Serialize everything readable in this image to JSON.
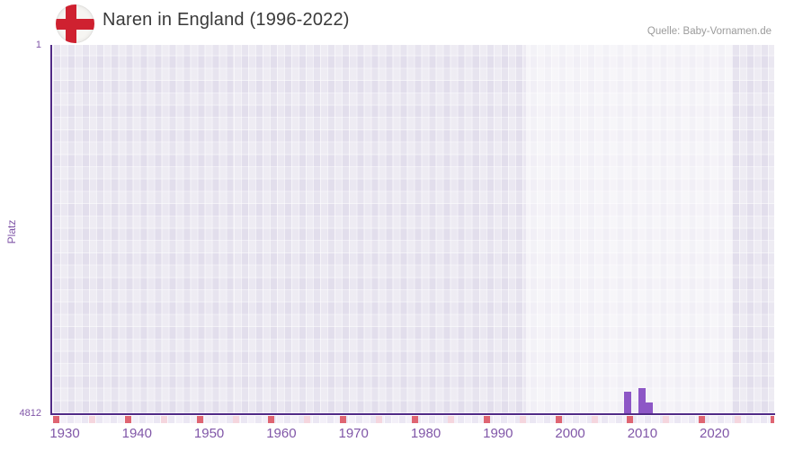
{
  "header": {
    "flag_icon": "england-flag-icon"
  },
  "chart_data": {
    "type": "bar",
    "title": "Naren in England (1996-2022)",
    "source_credit": "Quelle: Baby-Vornamen.de",
    "ylabel": "Platz",
    "x_axis": {
      "min_year": 1929,
      "max_year": 2028,
      "tick_years": [
        1930,
        1940,
        1950,
        1960,
        1970,
        1980,
        1990,
        2000,
        2010,
        2020
      ]
    },
    "y_axis": {
      "min": 1,
      "max": 4812,
      "inverted": true,
      "tick_labels": [
        "1",
        "4812"
      ]
    },
    "bars": [
      {
        "year": 2008,
        "rank": 4530
      },
      {
        "year": 2010,
        "rank": 4485
      },
      {
        "year": 2011,
        "rank": 4670
      }
    ],
    "highlight_band": {
      "from_year": 1994.5,
      "to_year": 2023
    },
    "axis_strip_markers": {
      "dark_start_year": 1929,
      "dark_year_interval": 10,
      "light_offset_years": 5
    },
    "legend": false,
    "grid": "checkerboard"
  },
  "colors": {
    "bar": "#8d57c6",
    "axis_line": "#512b87",
    "tick_label": "#8157a8",
    "title": "#3a3a3a",
    "credit": "#9b9b9b",
    "flag_red": "#cf2130",
    "strip_dark": "#df6572",
    "strip_light": "#f5d6de",
    "strip_base_even": "#ebe7f3",
    "strip_base_odd": "#f3f0f8"
  }
}
